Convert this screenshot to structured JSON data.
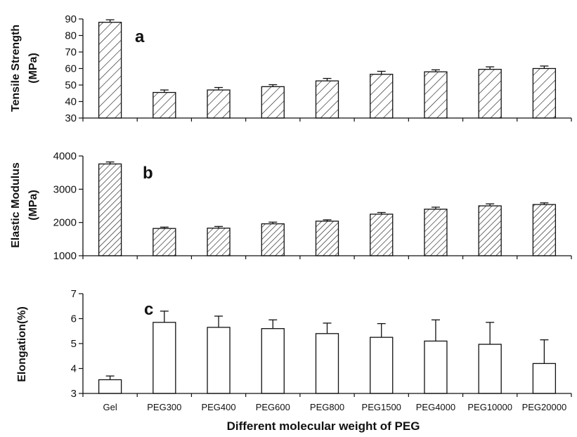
{
  "chart_data": [
    {
      "type": "bar",
      "panel_label": "a",
      "ylabel_line1": "Tensile Strength",
      "ylabel_line2": "(MPa)",
      "ylim": [
        30,
        90
      ],
      "yticks": [
        30,
        40,
        50,
        60,
        70,
        80,
        90
      ],
      "fill": "hatched",
      "categories": [
        "Gel",
        "PEG300",
        "PEG400",
        "PEG600",
        "PEG800",
        "PEG1500",
        "PEG4000",
        "PEG10000",
        "PEG20000"
      ],
      "values": [
        88,
        45.5,
        47,
        49,
        52.5,
        56.5,
        58,
        59.5,
        60
      ],
      "errors": [
        1.5,
        1.5,
        1.5,
        1.2,
        1.5,
        1.8,
        1.2,
        1.5,
        1.5
      ]
    },
    {
      "type": "bar",
      "panel_label": "b",
      "ylabel_line1": "Elastic Modulus",
      "ylabel_line2": "(MPa)",
      "ylim": [
        1000,
        4000
      ],
      "yticks": [
        1000,
        2000,
        3000,
        4000
      ],
      "fill": "hatched",
      "categories": [
        "Gel",
        "PEG300",
        "PEG400",
        "PEG600",
        "PEG800",
        "PEG1500",
        "PEG4000",
        "PEG10000",
        "PEG20000"
      ],
      "values": [
        3760,
        1820,
        1830,
        1960,
        2040,
        2250,
        2400,
        2500,
        2540
      ],
      "errors": [
        60,
        40,
        50,
        50,
        40,
        50,
        60,
        60,
        50
      ]
    },
    {
      "type": "bar",
      "panel_label": "c",
      "ylabel_line1": "Elongation(%)",
      "ylabel_line2": "",
      "ylim": [
        3,
        7
      ],
      "yticks": [
        3,
        4,
        5,
        6,
        7
      ],
      "fill": "open",
      "categories": [
        "Gel",
        "PEG300",
        "PEG400",
        "PEG600",
        "PEG800",
        "PEG1500",
        "PEG4000",
        "PEG10000",
        "PEG20000"
      ],
      "values": [
        3.55,
        5.85,
        5.65,
        5.6,
        5.4,
        5.25,
        5.1,
        4.97,
        4.2
      ],
      "errors": [
        0.15,
        0.45,
        0.45,
        0.35,
        0.42,
        0.55,
        0.85,
        0.88,
        0.95
      ],
      "xlabel": "Different molecular weight of PEG"
    }
  ]
}
